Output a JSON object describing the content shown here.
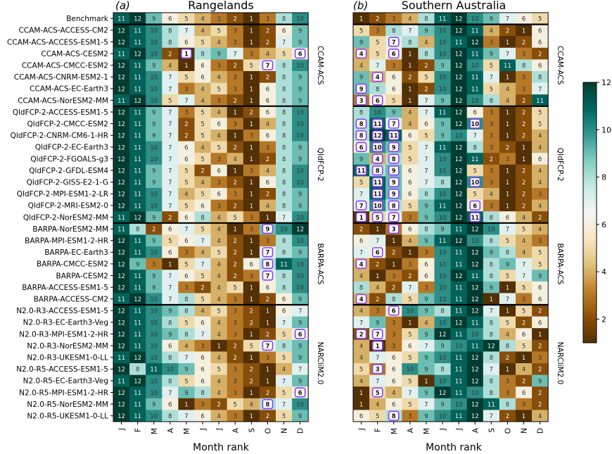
{
  "chart_data": {
    "type": "heatmap",
    "x_label": "Month rank",
    "months": [
      "J",
      "F",
      "M",
      "A",
      "M",
      "J",
      "J",
      "A",
      "S",
      "O",
      "N",
      "D"
    ],
    "rows": [
      "Benchmark",
      "CCAM-ACS-ACCESS-CM2",
      "CCAM-ACS-ACCESS-ESM1-5",
      "CCAM-ACS-CESM2",
      "CCAM-ACS-CMCC-ESM2",
      "CCAM-ACS-CNRM-ESM2-1",
      "CCAM-ACS-EC-Earth3",
      "CCAM-ACS-NorESM2-MM",
      "QldFCP-2-ACCESS-ESM1-5",
      "QldFCP-2-CMCC-ESM2",
      "QldFCP-2-CNRM-CM6-1-HR",
      "QldFCP-2-EC-Earth3",
      "QldFCP-2-FGOALS-g3",
      "QldFCP-2-GFDL-ESM4",
      "QldFCP-2-GISS-E2-1-G",
      "QldFCP-2-MPI-ESM1-2-LR",
      "QldFCP-2-MRI-ESM2-0",
      "QldFCP-2-NorESM2-MM",
      "BARPA-NorESM2-MM",
      "BARPA-MPI-ESM1-2-HR",
      "BARPA-EC-Earth3",
      "BARPA-CMCC-ESM2",
      "BARPA-CESM2",
      "BARPA-ACCESS-ESM1-5",
      "BARPA-ACCESS-CM2",
      "N2.0-R3-ACCESS-ESM1-5",
      "N2.0-R3-EC-Earth3-Veg",
      "N2.0-R3-MPI-ESM1-2-HR",
      "N2.0-R3-NorESM2-MM",
      "N2.0-R3-UKESM1-0-LL",
      "N2.0-R5-ACCESS-ESM1-5",
      "N2.0-R5-EC-Earth3-Veg",
      "N2.0-R5-MPI-ESM1-2-HR",
      "N2.0-R5-NorESM2-MM",
      "N2.0-R5-UKESM1-0-LL"
    ],
    "groups": [
      {
        "label": "CCAM-ACS",
        "first": 1,
        "last": 7
      },
      {
        "label": "QldFCP-2",
        "first": 8,
        "last": 17
      },
      {
        "label": "BARPA-ACS",
        "first": 18,
        "last": 24
      },
      {
        "label": "NARCliM2.0",
        "first": 25,
        "last": 34
      }
    ],
    "panels": [
      {
        "tag": "(a)",
        "title": "Rangelands",
        "values": [
          [
            11,
            12,
            9,
            6,
            5,
            4,
            3,
            2,
            1,
            3,
            8,
            10
          ],
          [
            12,
            11,
            10,
            8,
            7,
            4,
            5,
            3,
            1,
            2,
            6,
            9
          ],
          [
            12,
            11,
            10,
            8,
            6,
            5,
            4,
            3,
            1,
            2,
            7,
            9
          ],
          [
            11,
            12,
            10,
            2,
            1,
            8,
            9,
            7,
            3,
            4,
            5,
            6
          ],
          [
            12,
            11,
            9,
            4,
            1,
            6,
            3,
            2,
            5,
            7,
            8,
            10
          ],
          [
            12,
            11,
            10,
            7,
            5,
            6,
            4,
            3,
            1,
            2,
            8,
            9
          ],
          [
            12,
            11,
            10,
            7,
            3,
            4,
            5,
            3,
            1,
            6,
            8,
            9
          ],
          [
            11,
            12,
            10,
            5,
            7,
            4,
            3,
            2,
            1,
            6,
            8,
            9
          ],
          [
            12,
            11,
            9,
            7,
            3,
            5,
            4,
            1,
            2,
            6,
            8,
            10
          ],
          [
            12,
            11,
            9,
            7,
            2,
            5,
            6,
            3,
            1,
            4,
            8,
            10
          ],
          [
            12,
            11,
            9,
            7,
            2,
            5,
            4,
            1,
            3,
            6,
            8,
            10
          ],
          [
            12,
            11,
            10,
            7,
            6,
            4,
            5,
            2,
            1,
            3,
            8,
            9
          ],
          [
            12,
            11,
            10,
            7,
            6,
            5,
            3,
            4,
            1,
            2,
            8,
            9
          ],
          [
            12,
            11,
            9,
            7,
            5,
            2,
            6,
            1,
            3,
            4,
            8,
            10
          ],
          [
            12,
            11,
            9,
            7,
            5,
            4,
            3,
            2,
            1,
            6,
            8,
            10
          ],
          [
            12,
            11,
            10,
            7,
            4,
            5,
            6,
            3,
            1,
            2,
            8,
            9
          ],
          [
            12,
            11,
            10,
            7,
            5,
            6,
            3,
            2,
            1,
            4,
            8,
            9
          ],
          [
            11,
            12,
            9,
            2,
            6,
            8,
            4,
            5,
            3,
            1,
            7,
            10
          ],
          [
            11,
            8,
            2,
            6,
            7,
            5,
            4,
            1,
            3,
            9,
            10,
            12
          ],
          [
            12,
            11,
            9,
            5,
            6,
            7,
            4,
            2,
            1,
            3,
            8,
            10
          ],
          [
            12,
            11,
            10,
            6,
            3,
            4,
            5,
            2,
            1,
            7,
            8,
            9
          ],
          [
            12,
            9,
            3,
            1,
            5,
            7,
            4,
            2,
            6,
            8,
            11,
            10
          ],
          [
            12,
            11,
            9,
            7,
            6,
            5,
            4,
            2,
            3,
            7,
            8,
            10
          ],
          [
            12,
            11,
            9,
            7,
            3,
            2,
            4,
            5,
            1,
            6,
            8,
            10
          ],
          [
            11,
            12,
            10,
            7,
            8,
            5,
            4,
            3,
            1,
            2,
            6,
            9
          ],
          [
            12,
            11,
            10,
            9,
            8,
            4,
            5,
            3,
            2,
            1,
            6,
            7
          ],
          [
            12,
            11,
            10,
            8,
            5,
            6,
            4,
            3,
            2,
            1,
            7,
            9
          ],
          [
            12,
            11,
            10,
            9,
            8,
            7,
            4,
            3,
            1,
            2,
            5,
            6
          ],
          [
            12,
            11,
            10,
            6,
            4,
            3,
            1,
            2,
            5,
            7,
            8,
            9
          ],
          [
            11,
            12,
            10,
            8,
            7,
            6,
            4,
            2,
            1,
            3,
            5,
            9
          ],
          [
            12,
            8,
            11,
            10,
            9,
            6,
            5,
            3,
            2,
            1,
            4,
            7
          ],
          [
            11,
            12,
            10,
            8,
            5,
            6,
            4,
            3,
            2,
            1,
            7,
            9
          ],
          [
            12,
            11,
            10,
            7,
            9,
            8,
            4,
            3,
            1,
            2,
            5,
            6
          ],
          [
            12,
            11,
            9,
            6,
            1,
            3,
            2,
            5,
            4,
            8,
            7,
            10
          ],
          [
            12,
            11,
            10,
            8,
            7,
            6,
            4,
            3,
            1,
            2,
            5,
            9
          ]
        ],
        "highlighted": [
          [
            3,
            4
          ],
          [
            3,
            11
          ],
          [
            4,
            9
          ],
          [
            18,
            9
          ],
          [
            20,
            9
          ],
          [
            21,
            9
          ],
          [
            22,
            9
          ],
          [
            27,
            11
          ],
          [
            28,
            9
          ],
          [
            32,
            11
          ],
          [
            33,
            9
          ]
        ]
      },
      {
        "tag": "(b)",
        "title": "Southern Australia",
        "values": [
          [
            1,
            2,
            3,
            4,
            8,
            11,
            12,
            10,
            9,
            7,
            6,
            5
          ],
          [
            5,
            3,
            8,
            7,
            9,
            10,
            12,
            11,
            4,
            2,
            1,
            6
          ],
          [
            9,
            5,
            7,
            8,
            4,
            10,
            11,
            12,
            3,
            1,
            2,
            6
          ],
          [
            4,
            5,
            6,
            1,
            8,
            10,
            12,
            11,
            9,
            7,
            3,
            2
          ],
          [
            4,
            7,
            3,
            1,
            2,
            9,
            12,
            10,
            5,
            11,
            8,
            6
          ],
          [
            9,
            4,
            6,
            2,
            5,
            10,
            12,
            11,
            7,
            1,
            3,
            8
          ],
          [
            9,
            8,
            6,
            1,
            2,
            10,
            12,
            11,
            5,
            4,
            3,
            7
          ],
          [
            3,
            6,
            5,
            1,
            7,
            9,
            12,
            10,
            8,
            4,
            2,
            11
          ],
          [
            8,
            10,
            9,
            4,
            7,
            11,
            12,
            6,
            3,
            1,
            2,
            5
          ],
          [
            8,
            11,
            7,
            4,
            6,
            9,
            12,
            10,
            3,
            1,
            2,
            5
          ],
          [
            8,
            12,
            11,
            6,
            5,
            9,
            10,
            7,
            3,
            1,
            2,
            4
          ],
          [
            6,
            10,
            9,
            5,
            7,
            11,
            12,
            8,
            3,
            2,
            1,
            4
          ],
          [
            9,
            4,
            8,
            5,
            7,
            10,
            12,
            11,
            2,
            3,
            1,
            6
          ],
          [
            11,
            8,
            9,
            6,
            7,
            10,
            12,
            5,
            3,
            1,
            2,
            4
          ],
          [
            5,
            11,
            9,
            6,
            7,
            8,
            12,
            10,
            3,
            1,
            2,
            4
          ],
          [
            7,
            11,
            9,
            6,
            8,
            10,
            12,
            5,
            4,
            1,
            2,
            3
          ],
          [
            7,
            10,
            8,
            5,
            9,
            11,
            12,
            6,
            3,
            1,
            2,
            4
          ],
          [
            1,
            5,
            7,
            3,
            9,
            10,
            12,
            11,
            8,
            6,
            4,
            2
          ],
          [
            2,
            1,
            3,
            6,
            8,
            9,
            11,
            12,
            10,
            7,
            5,
            4
          ],
          [
            6,
            7,
            1,
            4,
            9,
            11,
            12,
            10,
            8,
            5,
            4,
            3
          ],
          [
            7,
            6,
            2,
            1,
            3,
            10,
            11,
            12,
            9,
            8,
            4,
            5
          ],
          [
            4,
            2,
            1,
            3,
            6,
            10,
            11,
            12,
            8,
            9,
            7,
            5
          ],
          [
            4,
            1,
            3,
            2,
            6,
            10,
            12,
            11,
            8,
            5,
            7,
            9
          ],
          [
            8,
            4,
            2,
            7,
            3,
            10,
            11,
            12,
            9,
            1,
            5,
            6
          ],
          [
            4,
            2,
            8,
            5,
            9,
            10,
            11,
            12,
            1,
            7,
            3,
            6
          ],
          [
            4,
            3,
            6,
            10,
            9,
            8,
            11,
            12,
            7,
            1,
            5,
            2
          ],
          [
            7,
            9,
            3,
            1,
            4,
            10,
            12,
            11,
            8,
            5,
            2,
            6
          ],
          [
            2,
            7,
            3,
            5,
            9,
            12,
            11,
            10,
            8,
            4,
            6,
            1
          ],
          [
            4,
            1,
            3,
            6,
            7,
            9,
            10,
            11,
            12,
            8,
            5,
            2
          ],
          [
            4,
            7,
            6,
            5,
            9,
            10,
            11,
            12,
            8,
            2,
            1,
            3
          ],
          [
            5,
            3,
            6,
            10,
            9,
            8,
            11,
            12,
            7,
            1,
            4,
            2
          ],
          [
            4,
            7,
            6,
            5,
            1,
            10,
            11,
            12,
            8,
            3,
            2,
            9
          ],
          [
            1,
            5,
            4,
            7,
            9,
            12,
            11,
            10,
            8,
            3,
            6,
            2
          ],
          [
            1,
            4,
            6,
            5,
            7,
            9,
            10,
            12,
            11,
            8,
            3,
            2
          ],
          [
            6,
            5,
            8,
            3,
            9,
            10,
            11,
            12,
            7,
            2,
            1,
            4
          ]
        ],
        "highlighted": [
          [
            2,
            2
          ],
          [
            3,
            0
          ],
          [
            3,
            2
          ],
          [
            5,
            1
          ],
          [
            6,
            0
          ],
          [
            7,
            0
          ],
          [
            7,
            1
          ],
          [
            9,
            7
          ],
          [
            9,
            0
          ],
          [
            9,
            1
          ],
          [
            9,
            2
          ],
          [
            10,
            0
          ],
          [
            10,
            1
          ],
          [
            10,
            2
          ],
          [
            11,
            0
          ],
          [
            11,
            1
          ],
          [
            11,
            2
          ],
          [
            12,
            1
          ],
          [
            12,
            2
          ],
          [
            13,
            0
          ],
          [
            13,
            1
          ],
          [
            13,
            2
          ],
          [
            14,
            1
          ],
          [
            14,
            2
          ],
          [
            15,
            1
          ],
          [
            15,
            2
          ],
          [
            16,
            0
          ],
          [
            16,
            1
          ],
          [
            16,
            2
          ],
          [
            17,
            0
          ],
          [
            17,
            1
          ],
          [
            17,
            2
          ],
          [
            18,
            2
          ],
          [
            14,
            7
          ],
          [
            16,
            7
          ],
          [
            17,
            7
          ],
          [
            20,
            1
          ],
          [
            21,
            0
          ],
          [
            24,
            0
          ],
          [
            25,
            2
          ],
          [
            27,
            0
          ],
          [
            27,
            1
          ],
          [
            28,
            1
          ],
          [
            30,
            1
          ],
          [
            32,
            1
          ],
          [
            34,
            2
          ]
        ]
      }
    ],
    "colorbar": {
      "min": 1,
      "max": 12,
      "ticks": [
        2,
        4,
        6,
        8,
        10,
        12
      ],
      "colors": [
        "#543005",
        "#8c510a",
        "#bf812d",
        "#dfc27d",
        "#f6e8c3",
        "#f5f5f5",
        "#c7eae5",
        "#80cdc1",
        "#35978f",
        "#01665e",
        "#003c30"
      ]
    }
  }
}
